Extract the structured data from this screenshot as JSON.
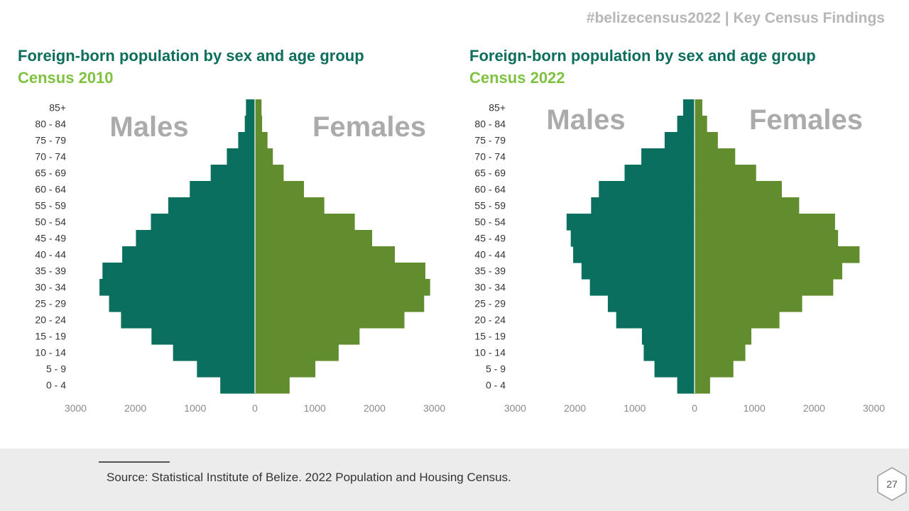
{
  "header": {
    "tag": "#belizecensus2022 | Key Census Findings"
  },
  "colors": {
    "male": "#0b6f5f",
    "female": "#618d2e",
    "title": "#0e6e5c",
    "subtitle": "#7fc241",
    "overlay": "#ababab",
    "axis_text": "#8a8a8a"
  },
  "charts": [
    {
      "title": "Foreign-born population by sex and age group",
      "subtitle": "Census 2010",
      "males_label": "Males",
      "females_label": "Females"
    },
    {
      "title": "Foreign-born population by sex and age group",
      "subtitle": "Census 2022",
      "males_label": "Males",
      "females_label": "Females"
    }
  ],
  "chart_data": [
    {
      "type": "bar",
      "orientation": "horizontal",
      "title": "Foreign-born population by sex and age group",
      "subtitle": "Census 2010",
      "categories": [
        "0 - 4",
        "5 - 9",
        "10 - 14",
        "15 - 19",
        "20 - 24",
        "25 - 29",
        "30 - 34",
        "35 - 39",
        "40 - 44",
        "45 - 49",
        "50 - 54",
        "55 - 59",
        "60 - 64",
        "65 - 69",
        "70 - 74",
        "75 - 79",
        "80 - 84",
        "85+"
      ],
      "series": [
        {
          "name": "Males",
          "values": [
            580,
            970,
            1370,
            1730,
            2240,
            2440,
            2600,
            2550,
            2220,
            1990,
            1740,
            1450,
            1090,
            740,
            470,
            280,
            170,
            150
          ]
        },
        {
          "name": "Females",
          "values": [
            580,
            1010,
            1400,
            1750,
            2500,
            2830,
            2930,
            2850,
            2340,
            1960,
            1670,
            1160,
            820,
            480,
            300,
            210,
            120,
            110
          ]
        }
      ],
      "xlim": [
        -3000,
        3000
      ],
      "xticks": [
        -3000,
        -2000,
        -1000,
        0,
        1000,
        2000,
        3000
      ],
      "xtick_labels": [
        "3000",
        "2000",
        "1000",
        "0",
        "1000",
        "2000",
        "3000"
      ],
      "grid": false,
      "legend": "in-chart labels"
    },
    {
      "type": "bar",
      "orientation": "horizontal",
      "title": "Foreign-born population by sex and age group",
      "subtitle": "Census 2022",
      "categories": [
        "0 - 4",
        "5 - 9",
        "10 - 14",
        "15 - 19",
        "20 - 24",
        "25 - 29",
        "30 - 34",
        "35 - 39",
        "40 - 44",
        "45 - 49",
        "50 - 54",
        "55 - 59",
        "60 - 64",
        "65 - 69",
        "70 - 74",
        "75 - 79",
        "80 - 84",
        "85+"
      ],
      "series": [
        {
          "name": "Males",
          "values": [
            290,
            670,
            850,
            880,
            1310,
            1450,
            1750,
            1890,
            2030,
            2070,
            2140,
            1730,
            1600,
            1170,
            890,
            500,
            290,
            190
          ]
        },
        {
          "name": "Females",
          "values": [
            260,
            650,
            850,
            950,
            1420,
            1800,
            2320,
            2470,
            2760,
            2400,
            2350,
            1750,
            1460,
            1030,
            680,
            390,
            210,
            130
          ]
        }
      ],
      "xlim": [
        -3000,
        3000
      ],
      "xticks": [
        -3000,
        -2000,
        -1000,
        0,
        1000,
        2000,
        3000
      ],
      "xtick_labels": [
        "3000",
        "2000",
        "1000",
        "0",
        "1000",
        "2000",
        "3000"
      ],
      "grid": false,
      "legend": "in-chart labels"
    }
  ],
  "footer": {
    "source": "Source: Statistical Institute of Belize. 2022 Population and Housing Census.",
    "page_number": "27"
  }
}
